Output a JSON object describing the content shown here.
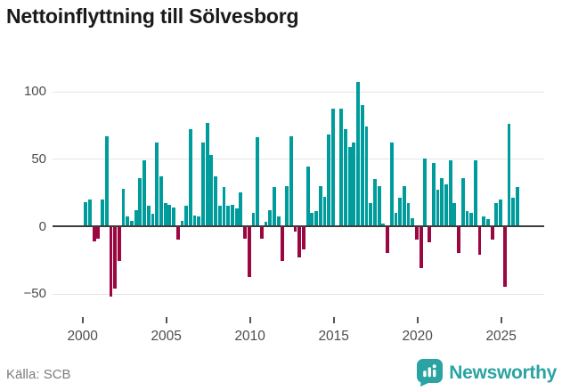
{
  "title": "Nettoinflyttning till Sölvesborg",
  "source": "Källa: SCB",
  "brand": {
    "name": "Newsworthy",
    "icon": "newsworthy-pin-barchart-icon"
  },
  "colors": {
    "positive_bar": "#009c9c",
    "negative_bar": "#9c0642",
    "zero_axis": "#3d3d3d",
    "gridline": "#e4e4e4",
    "tick_label": "#4d4d4d",
    "source_text": "#7d7d7d",
    "brand_teal": "#2ba3a3"
  },
  "chart_data": {
    "type": "bar",
    "title": "Nettoinflyttning till Sölvesborg",
    "xlabel": "",
    "ylabel": "",
    "frequency": "quarterly",
    "x_start": "2000-Q1",
    "x_end": "2025-Q4",
    "n_points": 104,
    "x_tick_labels": [
      "2000",
      "2005",
      "2010",
      "2015",
      "2020",
      "2025"
    ],
    "y_ticks": [
      100,
      50,
      0,
      -50
    ],
    "y_tick_labels": [
      "100",
      "50",
      "0",
      "−50"
    ],
    "ylim": [
      -60,
      112
    ],
    "grid": "horizontal",
    "legend": "none",
    "series": [
      {
        "name": "Nettoinflyttning",
        "values": [
          18,
          20,
          -11,
          -9,
          20,
          67,
          -52,
          -46,
          -26,
          28,
          7,
          4,
          12,
          36,
          49,
          15,
          9,
          62,
          37,
          17,
          16,
          14,
          -10,
          4,
          15,
          72,
          8,
          7,
          62,
          77,
          53,
          37,
          15,
          29,
          15,
          16,
          13,
          25,
          -9,
          -38,
          10,
          66,
          -9,
          3,
          12,
          29,
          7,
          -26,
          30,
          67,
          -4,
          -23,
          -17,
          44,
          10,
          11,
          30,
          22,
          68,
          87,
          0,
          87,
          72,
          59,
          62,
          107,
          90,
          74,
          17,
          35,
          30,
          2,
          -20,
          62,
          10,
          21,
          30,
          17,
          6,
          -10,
          -31,
          50,
          -12,
          47,
          27,
          36,
          31,
          49,
          17,
          -20,
          36,
          11,
          10,
          49,
          -21,
          7,
          5,
          -10,
          17,
          20,
          -45,
          76,
          21,
          29
        ]
      }
    ]
  }
}
